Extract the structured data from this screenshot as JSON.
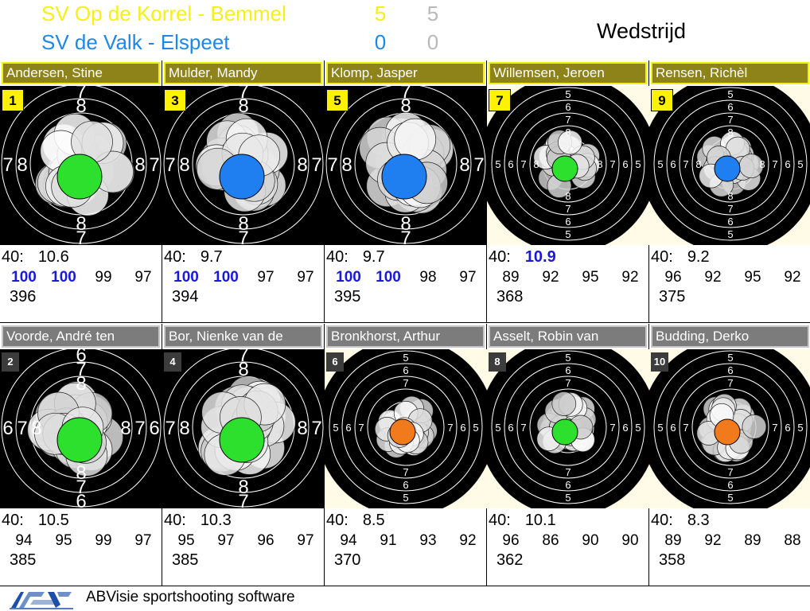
{
  "teams": [
    {
      "name": "SV Op de Korrel - Bemmel",
      "score": "5",
      "score2": "5",
      "color": "#f6ef18"
    },
    {
      "name": "SV de Valk - Elspeet",
      "score": "0",
      "score2": "0",
      "color": "#1e88e8"
    }
  ],
  "mode_title": "Wedstrijd",
  "lanes": [
    {
      "name": "Andersen, Stine",
      "badge": "1",
      "team": "yellow",
      "shots": "40:",
      "last": "10.6",
      "last_top": false,
      "series": [
        "100",
        "100",
        "99",
        "97"
      ],
      "series_top": [
        true,
        true,
        false,
        false
      ],
      "total": "396",
      "style": "dark",
      "ring_labels": [
        "7",
        "8"
      ],
      "marker_color": "#2ee02e"
    },
    {
      "name": "Mulder, Mandy",
      "badge": "3",
      "team": "yellow",
      "shots": "40:",
      "last": "9.7",
      "last_top": false,
      "series": [
        "100",
        "100",
        "97",
        "97"
      ],
      "series_top": [
        true,
        true,
        false,
        false
      ],
      "total": "394",
      "style": "dark",
      "ring_labels": [
        "7",
        "8"
      ],
      "marker_color": "#1f7ff0"
    },
    {
      "name": "Klomp, Jasper",
      "badge": "5",
      "team": "yellow",
      "shots": "40:",
      "last": "9.7",
      "last_top": false,
      "series": [
        "100",
        "100",
        "98",
        "97"
      ],
      "series_top": [
        true,
        true,
        false,
        false
      ],
      "total": "395",
      "style": "dark",
      "ring_labels": [
        "7",
        "8"
      ],
      "marker_color": "#1f7ff0"
    },
    {
      "name": "Willemsen, Jeroen",
      "badge": "7",
      "team": "yellow",
      "shots": "40:",
      "last": "10.9",
      "last_top": true,
      "series": [
        "89",
        "92",
        "95",
        "92"
      ],
      "series_top": [
        false,
        false,
        false,
        false
      ],
      "total": "368",
      "style": "light",
      "ring_labels": [
        "5",
        "6",
        "7",
        "8"
      ],
      "marker_color": "#2ee02e"
    },
    {
      "name": "Rensen, Richèl",
      "badge": "9",
      "team": "yellow",
      "shots": "40:",
      "last": "9.2",
      "last_top": false,
      "series": [
        "96",
        "92",
        "95",
        "92"
      ],
      "series_top": [
        false,
        false,
        false,
        false
      ],
      "total": "375",
      "style": "light",
      "ring_labels": [
        "5",
        "6",
        "7",
        "8"
      ],
      "marker_color": "#1f7ff0"
    },
    {
      "name": "Voorde, André ten",
      "badge": "2",
      "team": "grey",
      "shots": "40:",
      "last": "10.5",
      "last_top": false,
      "series": [
        "94",
        "95",
        "99",
        "97"
      ],
      "series_top": [
        false,
        false,
        false,
        false
      ],
      "total": "385",
      "style": "dark",
      "ring_labels": [
        "6",
        "7",
        "8"
      ],
      "marker_color": "#2ee02e"
    },
    {
      "name": "Bor, Nienke van de",
      "badge": "4",
      "team": "grey",
      "shots": "40:",
      "last": "10.3",
      "last_top": false,
      "series": [
        "95",
        "97",
        "96",
        "97"
      ],
      "series_top": [
        false,
        false,
        false,
        false
      ],
      "total": "385",
      "style": "dark",
      "ring_labels": [
        "7",
        "8"
      ],
      "marker_color": "#2ee02e"
    },
    {
      "name": "Bronkhorst, Arthur",
      "badge": "6",
      "team": "grey",
      "shots": "40:",
      "last": "8.5",
      "last_top": false,
      "series": [
        "94",
        "91",
        "93",
        "92"
      ],
      "series_top": [
        false,
        false,
        false,
        false
      ],
      "total": "370",
      "style": "light",
      "ring_labels": [
        "5",
        "6",
        "7"
      ],
      "marker_color": "#f07a1c"
    },
    {
      "name": "Asselt, Robin van",
      "badge": "8",
      "team": "grey",
      "shots": "40:",
      "last": "10.1",
      "last_top": false,
      "series": [
        "96",
        "86",
        "90",
        "90"
      ],
      "series_top": [
        false,
        false,
        false,
        false
      ],
      "total": "362",
      "style": "light",
      "ring_labels": [
        "5",
        "6",
        "7"
      ],
      "marker_color": "#2ee02e"
    },
    {
      "name": "Budding, Derko",
      "badge": "10",
      "team": "grey",
      "shots": "40:",
      "last": "8.3",
      "last_top": false,
      "series": [
        "89",
        "92",
        "89",
        "88"
      ],
      "series_top": [
        false,
        false,
        false,
        false
      ],
      "total": "358",
      "style": "light",
      "ring_labels": [
        "5",
        "6",
        "7"
      ],
      "marker_color": "#f07a1c"
    }
  ],
  "footer": {
    "text": "ABVisie sportshooting software",
    "logo_icon": "absv-logo-icon"
  },
  "colors": {
    "team_yellow_bar": "#8e8319",
    "team_grey_bar": "#7c7c7c",
    "top_score": "#1a1ad6"
  }
}
